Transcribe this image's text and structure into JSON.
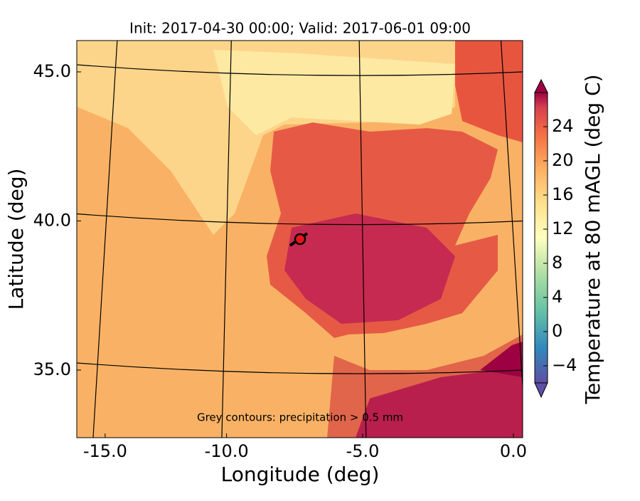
{
  "title": "Init: 2017-04-30 00:00; Valid: 2017-06-01 09:00",
  "x_axis": {
    "label": "Longitude (deg)",
    "ticks": [
      {
        "value": -15,
        "label": "-15.0"
      },
      {
        "value": -10,
        "label": "-10.0"
      },
      {
        "value": -5,
        "label": "-5.0"
      },
      {
        "value": 0,
        "label": "0.0"
      }
    ]
  },
  "y_axis": {
    "label": "Latitude (deg)",
    "ticks": [
      {
        "value": 35,
        "label": "35.0"
      },
      {
        "value": 40,
        "label": "40.0"
      },
      {
        "value": 45,
        "label": "45.0"
      }
    ]
  },
  "colorbar": {
    "label": "Temperature at 80 mAGL (deg C)",
    "clim": [
      -6,
      28
    ],
    "ticks": [
      {
        "value": -4,
        "label": "−4"
      },
      0,
      4,
      8,
      12,
      16,
      20,
      24
    ]
  },
  "annotation": "Grey contours: precipitation > 0.5 mm"
}
